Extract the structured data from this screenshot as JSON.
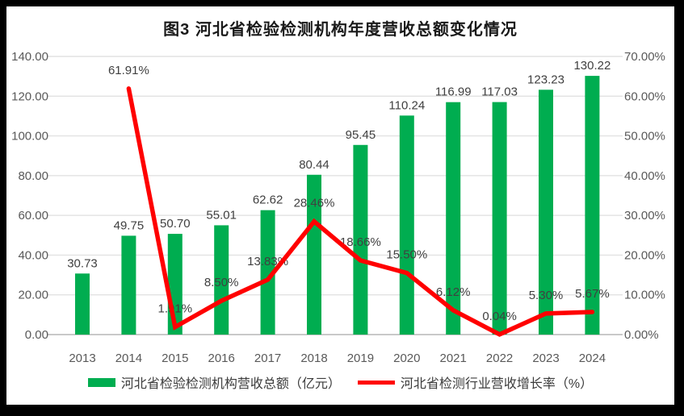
{
  "frame": {
    "background": "#000000",
    "card_background": "#ffffff"
  },
  "chart_data": {
    "type": "bar+line",
    "title": "图3 河北省检验检测机构年度营收总额变化情况",
    "categories": [
      "2013",
      "2014",
      "2015",
      "2016",
      "2017",
      "2018",
      "2019",
      "2020",
      "2021",
      "2022",
      "2023",
      "2024"
    ],
    "series": [
      {
        "name": "河北省检验检测机构营收总额（亿元）",
        "type": "bar",
        "axis": "left",
        "color": "#00AD50",
        "values": [
          30.73,
          49.75,
          50.7,
          55.01,
          62.62,
          80.44,
          95.45,
          110.24,
          116.99,
          117.03,
          123.23,
          130.22
        ],
        "labels": [
          "30.73",
          "49.75",
          "50.70",
          "55.01",
          "62.62",
          "80.44",
          "95.45",
          "110.24",
          "116.99",
          "117.03",
          "123.23",
          "130.22"
        ]
      },
      {
        "name": "河北省检测行业营收增长率（%）",
        "type": "line",
        "axis": "right",
        "color": "#FF0000",
        "values": [
          null,
          61.91,
          1.91,
          8.5,
          13.83,
          28.46,
          18.66,
          15.5,
          6.12,
          0.04,
          5.3,
          5.67
        ],
        "labels": [
          null,
          "61.91%",
          "1.91%",
          "8.50%",
          "13.83%",
          "28.46%",
          "18.66%",
          "15.50%",
          "6.12%",
          "0.04%",
          "5.30%",
          "5.67%"
        ]
      }
    ],
    "left_axis": {
      "min": 0,
      "max": 140,
      "step": 20,
      "tick_labels": [
        "0.00",
        "20.00",
        "40.00",
        "60.00",
        "80.00",
        "100.00",
        "120.00",
        "140.00"
      ]
    },
    "right_axis": {
      "min": 0,
      "max": 70,
      "step": 10,
      "tick_labels": [
        "0.00%",
        "10.00%",
        "20.00%",
        "30.00%",
        "40.00%",
        "50.00%",
        "60.00%",
        "70.00%"
      ]
    },
    "grid": true,
    "legend_position": "bottom",
    "colors": {
      "gridline": "#E2E2E2",
      "axis_line": "#C9C9C9",
      "axis_text": "#595959",
      "data_label": "#404040",
      "title_text": "#1a1a1a"
    }
  }
}
